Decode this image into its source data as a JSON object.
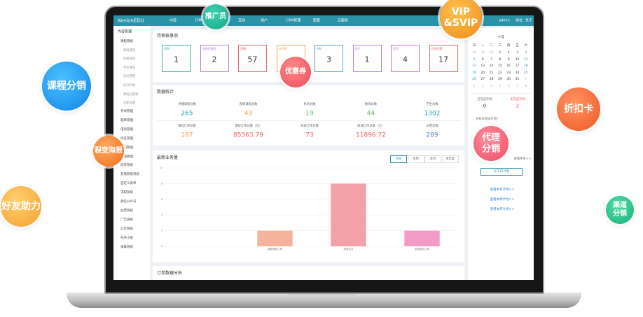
{
  "badges": [
    {
      "lines": [
        "推广员"
      ]
    },
    {
      "lines": [
        "VIP",
        "&SVIP"
      ]
    },
    {
      "lines": [
        "课程分销"
      ]
    },
    {
      "lines": [
        "优惠券"
      ]
    },
    {
      "lines": [
        "折扣卡"
      ]
    },
    {
      "lines": [
        "裂变海报"
      ]
    },
    {
      "lines": [
        "代理",
        "分销"
      ]
    },
    {
      "lines": [
        "好友助力"
      ]
    },
    {
      "lines": [
        "渠道",
        "分销"
      ]
    }
  ],
  "app": {
    "logo": "KesionEDU",
    "nav": [
      "内容",
      "订单",
      "互动",
      "用户",
      "CRM管理",
      "配置",
      "云服务"
    ],
    "user": "admin",
    "links": [
      "前台",
      "关于"
    ],
    "sidebar": {
      "title": "内容管理",
      "group": "课程系统",
      "subitems": [
        "课程管理",
        "班级管理",
        "专栏管理",
        "活动管理",
        "培训计划",
        "课程包管理",
        "功能设置"
      ],
      "items": [
        "考试管理",
        "题库管理",
        "电商管理",
        "问答管理",
        "资讯管理",
        "直播管理",
        "问答系统",
        "友情链接系统",
        "自定义表单",
        "求职系统",
        "微信公众号",
        "投票系统",
        "广告系统",
        "公告系统",
        "任务小组",
        "采集系统"
      ]
    },
    "pending": {
      "title": "待审核事项",
      "cards": [
        {
          "label": "机构",
          "value": 1,
          "color": "#3bb3a8"
        },
        {
          "label": "机构的课程",
          "value": 2,
          "color": "#b57fd6"
        },
        {
          "label": "直播",
          "value": 57,
          "color": "#e86a6a"
        },
        {
          "label": "开发票",
          "color": "#f0a45a"
        },
        {
          "label": "评价",
          "value": 3,
          "color": "#5b9fe0"
        },
        {
          "label": "图片",
          "value": 1,
          "color": "#b57fd6"
        },
        {
          "label": "提问",
          "value": 4,
          "color": "#c47ad6"
        },
        {
          "label": "问答问题",
          "value": 17,
          "color": "#e86a6a"
        }
      ]
    },
    "stats": {
      "title": "数据统计",
      "items": [
        {
          "label": "点播课程总数",
          "value": 265,
          "color": "#2f9fb0"
        },
        {
          "label": "直播课程总数",
          "value": 43,
          "color": "#f29a4a"
        },
        {
          "label": "机构总数",
          "value": 19,
          "color": "#6cc36c"
        },
        {
          "label": "教师总数",
          "value": 44,
          "color": "#6cc36c"
        },
        {
          "label": "学生总数",
          "value": 1302,
          "color": "#2f9fb0"
        },
        {
          "label": "课程订单总数",
          "value": 187,
          "color": "#f29a4a"
        },
        {
          "label": "课程订单总额（元）",
          "value": 85563.79,
          "color": "#e85a5a"
        },
        {
          "label": "商城订单总数",
          "value": 73,
          "color": "#e85a5a"
        },
        {
          "label": "商城订单总额（元）",
          "value": 11896.72,
          "color": "#e85a5a"
        },
        {
          "label": "试卷总数",
          "value": 289,
          "color": "#4a7fd0"
        }
      ]
    },
    "order_title": "订单数据分析",
    "calendar": {
      "month": "十月",
      "weekdays": [
        "日",
        "一",
        "二",
        "三",
        "四",
        "五",
        "六"
      ],
      "weeks": [
        [
          28,
          29,
          30,
          1,
          2,
          3,
          4
        ],
        [
          5,
          6,
          7,
          8,
          9,
          10,
          11
        ],
        [
          12,
          13,
          14,
          15,
          16,
          17,
          18
        ],
        [
          19,
          20,
          21,
          22,
          23,
          24,
          25
        ],
        [
          26,
          27,
          28,
          29,
          30,
          31,
          1
        ],
        [
          2,
          3,
          4,
          5,
          6,
          7,
          8
        ]
      ]
    },
    "plans": {
      "done_label": "已完成计划",
      "done": 0,
      "todo_label": "未完成计划",
      "todo": 2,
      "empty": "没有未完成计划！",
      "more": "查看更多>>",
      "button": "写工作计划",
      "links": [
        "查看本日计划>>",
        "查看本周计划>>",
        "查看本月计划>>"
      ]
    }
  },
  "chart_data": {
    "type": "bar",
    "title": "最新业务量",
    "tabs": [
      "今日",
      "本周",
      "本月",
      "本年度"
    ],
    "categories": [
      null,
      "课程课程订单",
      "新增会员",
      "新增商品订单"
    ],
    "values": [
      0,
      2,
      8,
      2
    ],
    "colors": [
      "#f4b39a",
      "#f4b39a",
      "#f4a0a8",
      "#f49ac6"
    ],
    "ylim": [
      0,
      10
    ],
    "yticks": [
      0,
      2,
      4,
      6,
      8,
      10
    ]
  }
}
